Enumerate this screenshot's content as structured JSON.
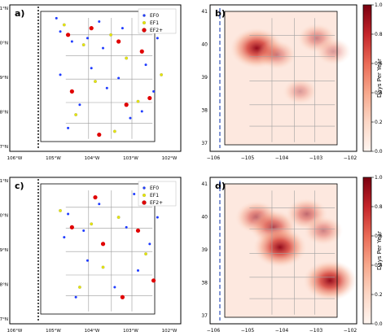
{
  "figure": {
    "panels": [
      "a)",
      "b)",
      "c)",
      "d)"
    ]
  },
  "colors": {
    "ef0": "#1f3cff",
    "ef1": "#e6e600",
    "ef2p": "#e00000",
    "heat_low": "#fff5f0",
    "heat_high": "#7a0010"
  },
  "chart_data": [
    {
      "type": "scatter",
      "panel": "a)",
      "legend": [
        "EF0",
        "EF1",
        "EF2+"
      ],
      "legend_location": "upper right",
      "xticklabels": [
        "106°W",
        "105°W",
        "104°W",
        "103°W",
        "102°W"
      ],
      "yticklabels": [
        "37°N",
        "38°N",
        "39°N",
        "40°N",
        "41°N"
      ],
      "xlim": [
        -106,
        -102
      ],
      "ylim": [
        37,
        41
      ],
      "series": [
        {
          "name": "EF0",
          "values": [
            [
              -104.9,
              40.4
            ],
            [
              -104.6,
              40.1
            ],
            [
              -104.2,
              40.2
            ],
            [
              -103.8,
              39.9
            ],
            [
              -103.3,
              40.5
            ],
            [
              -102.7,
              39.4
            ],
            [
              -102.5,
              38.6
            ],
            [
              -103.1,
              37.8
            ],
            [
              -104.4,
              38.2
            ],
            [
              -104.9,
              39.1
            ],
            [
              -105.0,
              40.8
            ],
            [
              -103.9,
              40.7
            ],
            [
              -102.4,
              40.2
            ],
            [
              -104.1,
              39.3
            ],
            [
              -103.4,
              39.0
            ],
            [
              -102.8,
              38.0
            ],
            [
              -104.7,
              37.5
            ],
            [
              -103.7,
              38.7
            ]
          ]
        },
        {
          "name": "EF1",
          "values": [
            [
              -104.8,
              40.6
            ],
            [
              -104.3,
              40.0
            ],
            [
              -103.6,
              40.3
            ],
            [
              -102.6,
              40.6
            ],
            [
              -103.2,
              39.6
            ],
            [
              -104.0,
              38.9
            ],
            [
              -102.9,
              38.3
            ],
            [
              -104.5,
              37.9
            ],
            [
              -103.5,
              37.4
            ],
            [
              -102.3,
              39.1
            ]
          ]
        },
        {
          "name": "EF2+",
          "values": [
            [
              -104.7,
              40.3
            ],
            [
              -104.1,
              40.5
            ],
            [
              -103.4,
              40.1
            ],
            [
              -102.8,
              39.8
            ],
            [
              -102.6,
              38.4
            ],
            [
              -103.2,
              38.2
            ],
            [
              -104.6,
              38.6
            ],
            [
              -103.9,
              37.3
            ]
          ]
        }
      ]
    },
    {
      "type": "heatmap",
      "panel": "b)",
      "xticklabels": [
        "−106",
        "−105",
        "−104",
        "−103",
        "−102"
      ],
      "yticklabels": [
        "37",
        "38",
        "39",
        "40",
        "41"
      ],
      "xlim": [
        -106,
        -102
      ],
      "ylim": [
        37,
        41
      ],
      "colorbar_label": "Days Per Year",
      "colorbar_ticks": [
        "0.0",
        "0.2",
        "0.4",
        "0.6",
        "0.8",
        "1.0"
      ],
      "hotspots": [
        {
          "x": -104.8,
          "y": 39.9,
          "value": 0.95
        },
        {
          "x": -104.2,
          "y": 39.7,
          "value": 0.45
        },
        {
          "x": -103.0,
          "y": 40.2,
          "value": 0.45
        },
        {
          "x": -102.5,
          "y": 39.8,
          "value": 0.35
        },
        {
          "x": -103.5,
          "y": 38.6,
          "value": 0.3
        }
      ]
    },
    {
      "type": "scatter",
      "panel": "c)",
      "legend": [
        "EF0",
        "EF1",
        "EF2+"
      ],
      "legend_location": "upper right",
      "xticklabels": [
        "106°W",
        "105°W",
        "104°W",
        "103°W",
        "102°W"
      ],
      "yticklabels": [
        "37°N",
        "38°N",
        "39°N",
        "40°N",
        "41°N"
      ],
      "xlim": [
        -106,
        -102
      ],
      "ylim": [
        37,
        41
      ],
      "series": [
        {
          "name": "EF0",
          "values": [
            [
              -104.7,
              40.1
            ],
            [
              -104.3,
              39.6
            ],
            [
              -103.9,
              40.4
            ],
            [
              -103.2,
              39.7
            ],
            [
              -102.6,
              39.2
            ],
            [
              -102.9,
              38.4
            ],
            [
              -103.5,
              37.9
            ],
            [
              -104.2,
              38.7
            ],
            [
              -104.8,
              39.4
            ],
            [
              -103.0,
              40.7
            ],
            [
              -102.4,
              40.0
            ],
            [
              -104.5,
              37.6
            ]
          ]
        },
        {
          "name": "EF1",
          "values": [
            [
              -104.9,
              40.2
            ],
            [
              -104.1,
              39.8
            ],
            [
              -103.4,
              40.0
            ],
            [
              -102.7,
              38.9
            ],
            [
              -103.8,
              38.5
            ],
            [
              -104.4,
              37.9
            ]
          ]
        },
        {
          "name": "EF2+",
          "values": [
            [
              -104.6,
              39.7
            ],
            [
              -103.8,
              39.2
            ],
            [
              -102.9,
              39.6
            ],
            [
              -102.5,
              38.1
            ],
            [
              -103.3,
              37.6
            ],
            [
              -104.0,
              40.6
            ]
          ]
        }
      ]
    },
    {
      "type": "heatmap",
      "panel": "d)",
      "xticklabels": [
        "−106",
        "−105",
        "−104",
        "−103",
        "−102"
      ],
      "yticklabels": [
        "37",
        "38",
        "39",
        "40",
        "41"
      ],
      "xlim": [
        -106,
        -102
      ],
      "ylim": [
        37,
        41
      ],
      "colorbar_label": "Days Per Year",
      "colorbar_ticks": [
        "0.0",
        "0.2",
        "0.4",
        "0.6",
        "0.8",
        "1.0"
      ],
      "hotspots": [
        {
          "x": -104.8,
          "y": 40.0,
          "value": 0.6
        },
        {
          "x": -104.3,
          "y": 39.7,
          "value": 0.7
        },
        {
          "x": -104.1,
          "y": 39.1,
          "value": 0.95
        },
        {
          "x": -103.3,
          "y": 40.1,
          "value": 0.55
        },
        {
          "x": -102.6,
          "y": 38.1,
          "value": 0.95
        },
        {
          "x": -102.8,
          "y": 39.6,
          "value": 0.45
        }
      ]
    }
  ]
}
